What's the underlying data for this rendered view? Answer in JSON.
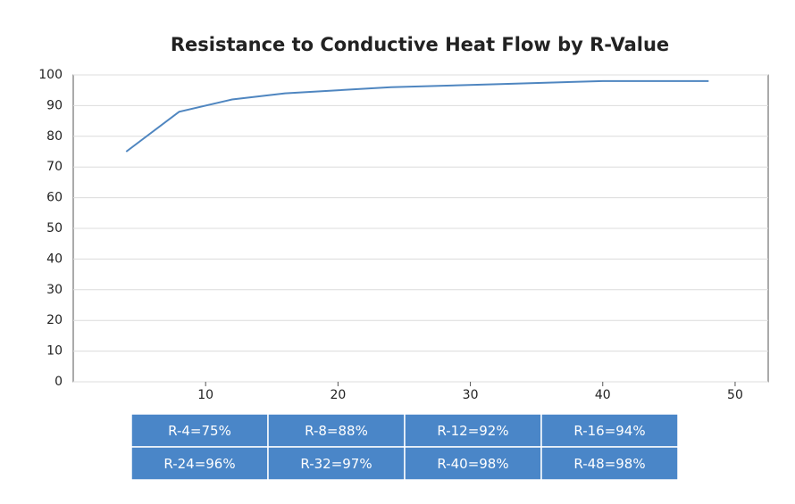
{
  "chart_data": {
    "type": "line",
    "title": "Resistance to Conductive Heat Flow by R-Value",
    "x": [
      4,
      8,
      12,
      16,
      24,
      32,
      40,
      48
    ],
    "values": [
      75,
      88,
      92,
      94,
      96,
      97,
      98,
      98
    ],
    "color": "#4f86c0",
    "xlim": [
      0,
      52.5
    ],
    "xticks": [
      10,
      20,
      30,
      40,
      50
    ],
    "ylim": [
      0,
      100
    ],
    "yticks": [
      0,
      10,
      20,
      30,
      40,
      50,
      60,
      70,
      80,
      90,
      100
    ],
    "grid": true
  },
  "table": {
    "rows": [
      [
        "R-4=75%",
        "R-8=88%",
        "R-12=92%",
        "R-16=94%"
      ],
      [
        "R-24=96%",
        "R-32=97%",
        "R-40=98%",
        "R-48=98%"
      ]
    ],
    "color": "#4a86c8"
  }
}
